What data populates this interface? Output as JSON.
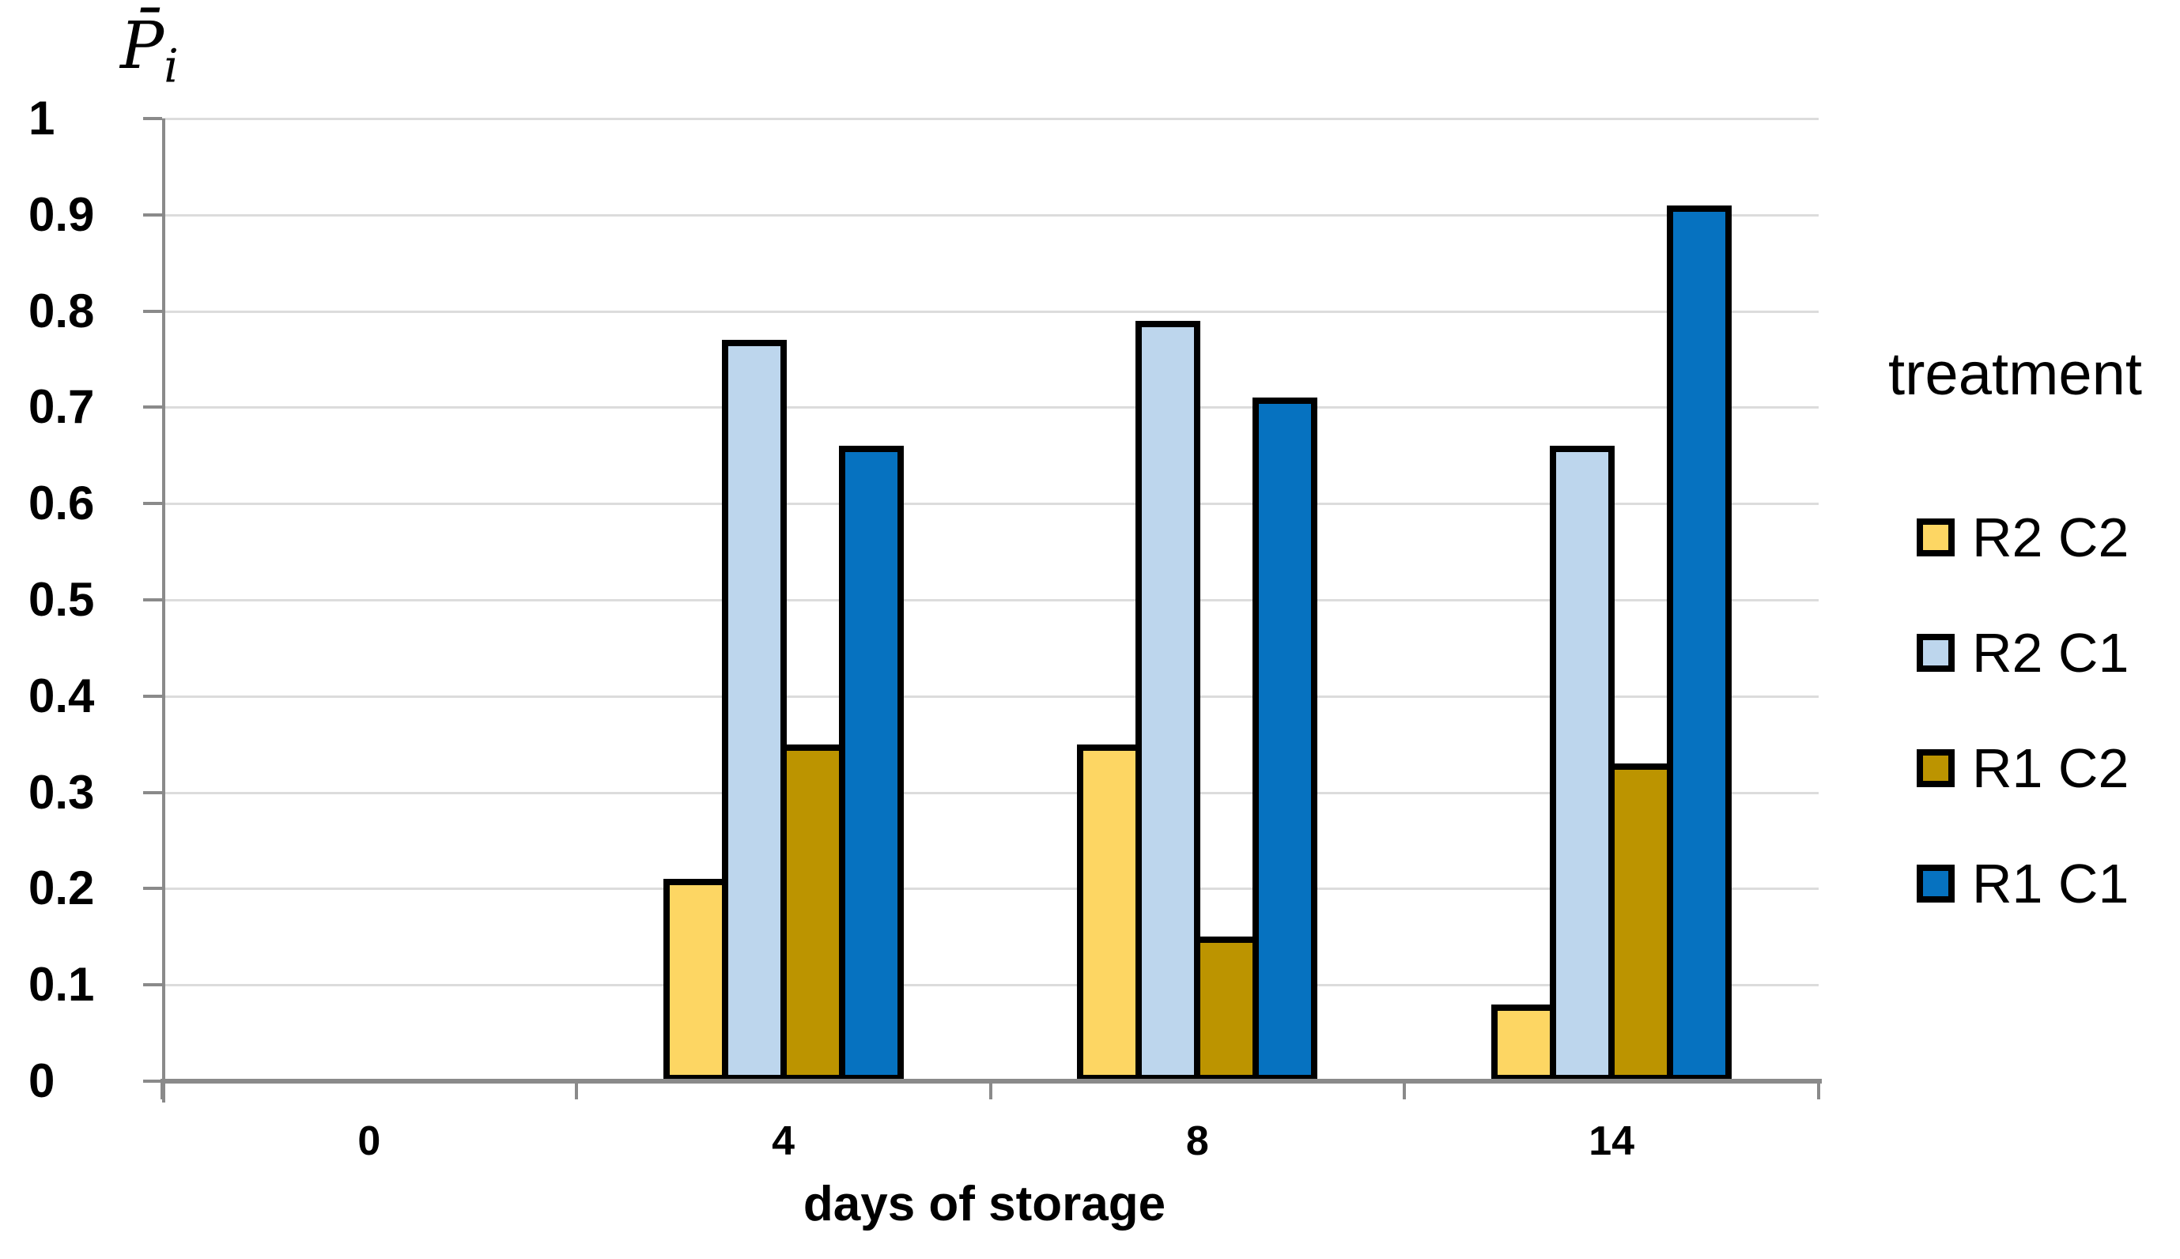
{
  "chart_data": {
    "type": "bar",
    "title": "",
    "x_axis": {
      "label": "days of storage",
      "categories": [
        "0",
        "4",
        "8",
        "14"
      ]
    },
    "y_axis": {
      "title_main": "P̄",
      "title_sub": "i",
      "min": 0,
      "max": 1,
      "tick_step": 0.1,
      "tick_labels": [
        "0",
        "0.1",
        "0.2",
        "0.3",
        "0.4",
        "0.5",
        "0.6",
        "0.7",
        "0.8",
        "0.9",
        "1"
      ]
    },
    "grid": true,
    "legend": {
      "title": "treatment",
      "position": "right"
    },
    "series": [
      {
        "name": "R2 C2",
        "color": "#FDD663",
        "values": [
          0,
          0.21,
          0.35,
          0.08
        ]
      },
      {
        "name": "R2 C1",
        "color": "#BDD6ED",
        "values": [
          0,
          0.77,
          0.79,
          0.66
        ]
      },
      {
        "name": "R1 C2",
        "color": "#BC9400",
        "values": [
          0,
          0.35,
          0.15,
          0.33
        ]
      },
      {
        "name": "R1 C1",
        "color": "#0672C0",
        "values": [
          0,
          0.66,
          0.71,
          0.91
        ]
      }
    ]
  }
}
